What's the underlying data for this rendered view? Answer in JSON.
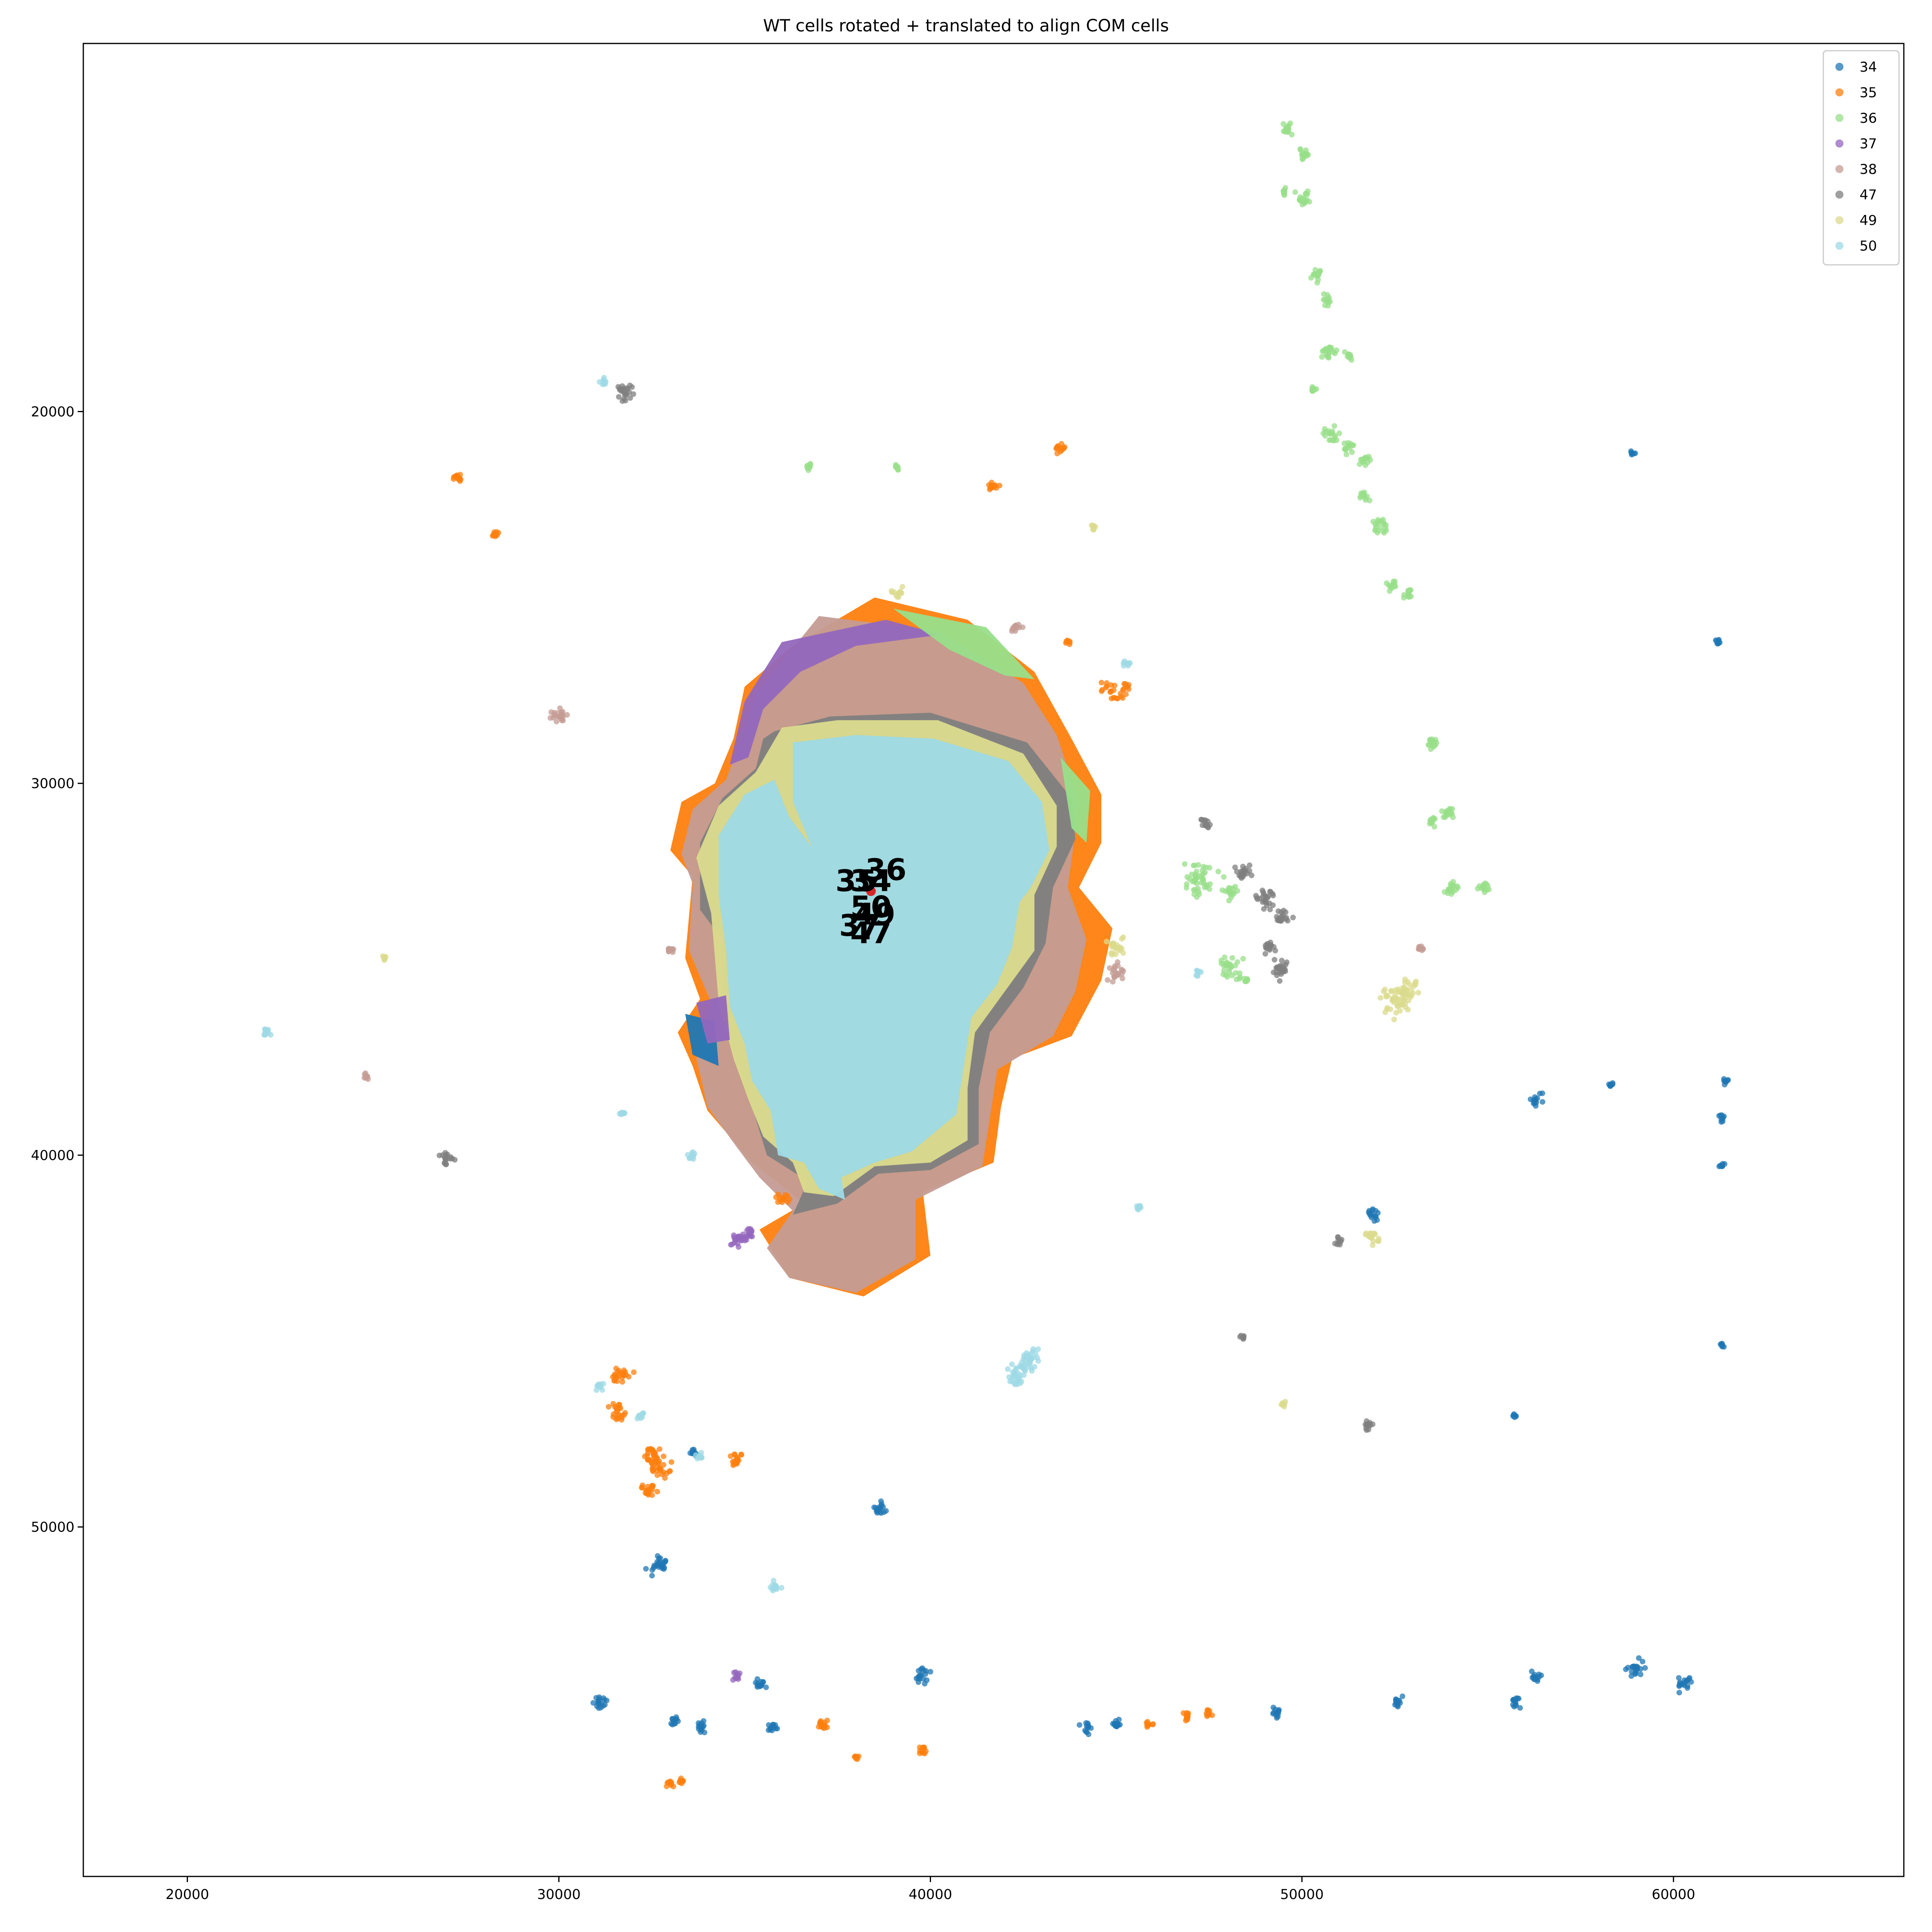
{
  "chart_data": {
    "type": "scatter",
    "title": "WT cells rotated + translated to align COM cells",
    "xlabel": "",
    "ylabel": "",
    "xlim": [
      17200,
      66200
    ],
    "ylim": [
      59400,
      10100
    ],
    "y_inverted": true,
    "grid": false,
    "legend_position": "top-right",
    "x_ticks": [
      20000,
      30000,
      40000,
      50000,
      60000
    ],
    "x_tick_labels": [
      "20000",
      "30000",
      "40000",
      "50000",
      "60000"
    ],
    "y_ticks": [
      20000,
      30000,
      40000,
      50000
    ],
    "y_tick_labels": [
      "20000",
      "30000",
      "40000",
      "50000"
    ],
    "series": [
      {
        "name": "34",
        "color": "#1f77b4",
        "main_region": [
          [
            35000,
            31200
          ],
          [
            35200,
            31200
          ],
          [
            35300,
            36000
          ],
          [
            35400,
            36700
          ],
          [
            34600,
            36800
          ],
          [
            34500,
            37000
          ],
          [
            35000,
            37300
          ],
          [
            35400,
            37100
          ]
        ],
        "clusters": [
          [
            32700,
            51000,
            300
          ],
          [
            38600,
            49500,
            200
          ],
          [
            39800,
            54000,
            220
          ],
          [
            31100,
            54700,
            200
          ],
          [
            33800,
            55400,
            160
          ],
          [
            35800,
            55400,
            160
          ],
          [
            44200,
            55400,
            160
          ],
          [
            45000,
            55300,
            160
          ],
          [
            49300,
            55000,
            140
          ],
          [
            52600,
            54700,
            150
          ],
          [
            55800,
            54700,
            150
          ],
          [
            56300,
            54000,
            160
          ],
          [
            59000,
            53800,
            250
          ],
          [
            60300,
            54200,
            220
          ],
          [
            61300,
            39000,
            110
          ],
          [
            61400,
            38000,
            100
          ],
          [
            61300,
            40300,
            100
          ],
          [
            61200,
            26200,
            90
          ],
          [
            58900,
            21100,
            80
          ],
          [
            56300,
            38500,
            180
          ],
          [
            51900,
            41600,
            180
          ],
          [
            33600,
            48000,
            150
          ],
          [
            35400,
            54200,
            160
          ],
          [
            33100,
            55200,
            130
          ],
          [
            58300,
            38100,
            90
          ],
          [
            61300,
            45100,
            80
          ],
          [
            55700,
            47000,
            80
          ]
        ]
      },
      {
        "name": "35",
        "color": "#ff7f0e",
        "main_region": [
          [
            38500,
            25000
          ],
          [
            41500,
            26200
          ],
          [
            42800,
            27700
          ],
          [
            43800,
            29800
          ],
          [
            44600,
            31300
          ],
          [
            44400,
            33600
          ],
          [
            44900,
            34300
          ],
          [
            44200,
            35200
          ],
          [
            43900,
            36800
          ],
          [
            42100,
            37400
          ],
          [
            38800,
            40300
          ],
          [
            37300,
            40600
          ],
          [
            36600,
            41200
          ]
        ],
        "clusters": [
          [
            31700,
            45900,
            280
          ],
          [
            31600,
            46900,
            250
          ],
          [
            32500,
            48100,
            300
          ],
          [
            32700,
            48400,
            320
          ],
          [
            32400,
            49000,
            250
          ],
          [
            34800,
            48200,
            200
          ],
          [
            45000,
            27500,
            350
          ],
          [
            43500,
            21000,
            160
          ],
          [
            41700,
            22000,
            160
          ],
          [
            27300,
            21800,
            150
          ],
          [
            28300,
            23300,
            110
          ],
          [
            37100,
            55300,
            180
          ],
          [
            39800,
            56000,
            140
          ],
          [
            38000,
            56200,
            90
          ],
          [
            33000,
            56900,
            110
          ],
          [
            33300,
            56800,
            110
          ],
          [
            45900,
            55300,
            110
          ],
          [
            46900,
            55100,
            150
          ],
          [
            47500,
            55000,
            120
          ],
          [
            43700,
            26200,
            90
          ],
          [
            36000,
            41200,
            180
          ]
        ]
      },
      {
        "name": "36",
        "color": "#98df8a",
        "main_region": [
          [
            41000,
            25800
          ],
          [
            42600,
            27000
          ],
          [
            43700,
            28400
          ],
          [
            44400,
            30600
          ],
          [
            43200,
            34500
          ],
          [
            43500,
            36100
          ],
          [
            42400,
            37200
          ]
        ],
        "clusters": [
          [
            49600,
            12400,
            200
          ],
          [
            50100,
            13100,
            180
          ],
          [
            50000,
            14300,
            230
          ],
          [
            49500,
            14100,
            100
          ],
          [
            50400,
            16300,
            180
          ],
          [
            50700,
            17000,
            140
          ],
          [
            50700,
            18400,
            250
          ],
          [
            51300,
            18500,
            150
          ],
          [
            50300,
            19400,
            110
          ],
          [
            50800,
            20600,
            230
          ],
          [
            51300,
            21000,
            170
          ],
          [
            51700,
            21300,
            150
          ],
          [
            51700,
            22300,
            160
          ],
          [
            52100,
            23100,
            250
          ],
          [
            52400,
            24700,
            150
          ],
          [
            52900,
            24900,
            140
          ],
          [
            53500,
            28900,
            200
          ],
          [
            53500,
            31000,
            150
          ],
          [
            53900,
            30800,
            200
          ],
          [
            54000,
            32800,
            200
          ],
          [
            54900,
            32800,
            150
          ],
          [
            47200,
            32600,
            550
          ],
          [
            48100,
            32900,
            200
          ],
          [
            48100,
            35000,
            350
          ],
          [
            36700,
            21500,
            100
          ],
          [
            39100,
            21500,
            90
          ],
          [
            48500,
            35300,
            80
          ]
        ]
      },
      {
        "name": "37",
        "color": "#9467bd",
        "main_region": [
          [
            36800,
            26000
          ],
          [
            38200,
            25800
          ],
          [
            35200,
            27300
          ],
          [
            34700,
            29000
          ],
          [
            34300,
            36300
          ],
          [
            34600,
            36800
          ],
          [
            35200,
            40000
          ],
          [
            34900,
            42200
          ]
        ],
        "clusters": [
          [
            34800,
            42300,
            250
          ],
          [
            35100,
            42100,
            200
          ],
          [
            34800,
            54000,
            130
          ]
        ]
      },
      {
        "name": "38",
        "color": "#c49c94",
        "main_region": [
          [
            36000,
            26800
          ],
          [
            40500,
            26200
          ],
          [
            43200,
            28500
          ],
          [
            44200,
            31200
          ],
          [
            43700,
            33200
          ],
          [
            43300,
            36000
          ],
          [
            41800,
            38700
          ],
          [
            41700,
            40100
          ],
          [
            39500,
            41000
          ],
          [
            39700,
            42700
          ],
          [
            37700,
            43800
          ],
          [
            35800,
            43100
          ],
          [
            34000,
            38800
          ],
          [
            34000,
            36700
          ]
        ],
        "clusters": [
          [
            30000,
            28200,
            260
          ],
          [
            45000,
            35100,
            260
          ],
          [
            42300,
            25800,
            150
          ],
          [
            33000,
            34500,
            120
          ],
          [
            24800,
            37900,
            110
          ],
          [
            53200,
            34400,
            120
          ]
        ]
      },
      {
        "name": "47",
        "color": "#7f7f7f",
        "main_region": [
          [
            35500,
            28500
          ],
          [
            42800,
            29200
          ],
          [
            43900,
            31500
          ],
          [
            43200,
            34200
          ],
          [
            41600,
            36700
          ],
          [
            41300,
            40000
          ],
          [
            38300,
            40600
          ],
          [
            36400,
            41800
          ],
          [
            35300,
            39400
          ],
          [
            34700,
            31800
          ]
        ],
        "clusters": [
          [
            31800,
            19500,
            280
          ],
          [
            27000,
            40100,
            220
          ],
          [
            47400,
            31100,
            150
          ],
          [
            48400,
            32400,
            250
          ],
          [
            49000,
            33100,
            300
          ],
          [
            49500,
            33600,
            220
          ],
          [
            49400,
            35000,
            300
          ],
          [
            49100,
            34400,
            200
          ],
          [
            51800,
            47300,
            150
          ],
          [
            51000,
            42300,
            120
          ],
          [
            48400,
            44900,
            80
          ]
        ]
      },
      {
        "name": "49",
        "color": "#dbdb8d",
        "main_region": [
          [
            35600,
            28300
          ],
          [
            34300,
            30700
          ],
          [
            38200,
            32700
          ],
          [
            42900,
            31600
          ],
          [
            42800,
            35200
          ],
          [
            40500,
            38900
          ],
          [
            39800,
            40300
          ],
          [
            36700,
            41000
          ],
          [
            35900,
            41300
          ]
        ],
        "clusters": [
          [
            52500,
            35900,
            450
          ],
          [
            52800,
            35600,
            380
          ],
          [
            45000,
            34400,
            300
          ],
          [
            51900,
            42200,
            200
          ],
          [
            39100,
            24900,
            140
          ],
          [
            25300,
            34700,
            90
          ],
          [
            49500,
            46700,
            80
          ],
          [
            44400,
            23100,
            80
          ]
        ]
      },
      {
        "name": "50",
        "color": "#9edae5",
        "main_region": [],
        "clusters": [
          [
            22100,
            36700,
            130
          ],
          [
            31200,
            19200,
            120
          ],
          [
            31100,
            46200,
            120
          ],
          [
            32200,
            47000,
            110
          ],
          [
            33800,
            48100,
            110
          ],
          [
            35800,
            51600,
            150
          ],
          [
            42500,
            45700,
            300
          ],
          [
            42300,
            46000,
            250
          ],
          [
            42700,
            45400,
            220
          ],
          [
            45600,
            41400,
            100
          ],
          [
            31700,
            38900,
            90
          ],
          [
            33600,
            40000,
            130
          ],
          [
            45300,
            26800,
            100
          ],
          [
            47200,
            35100,
            100
          ]
        ]
      }
    ],
    "centroid_labels": [
      {
        "text": "36",
        "x": 38800,
        "y": 32600
      },
      {
        "text": "35",
        "x": 38000,
        "y": 32900
      },
      {
        "text": "34",
        "x": 38400,
        "y": 32900
      },
      {
        "text": "50",
        "x": 38400,
        "y": 33600
      },
      {
        "text": "49",
        "x": 38500,
        "y": 33800
      },
      {
        "text": "37",
        "x": 38100,
        "y": 34100
      },
      {
        "text": "47",
        "x": 38400,
        "y": 34300
      }
    ]
  }
}
